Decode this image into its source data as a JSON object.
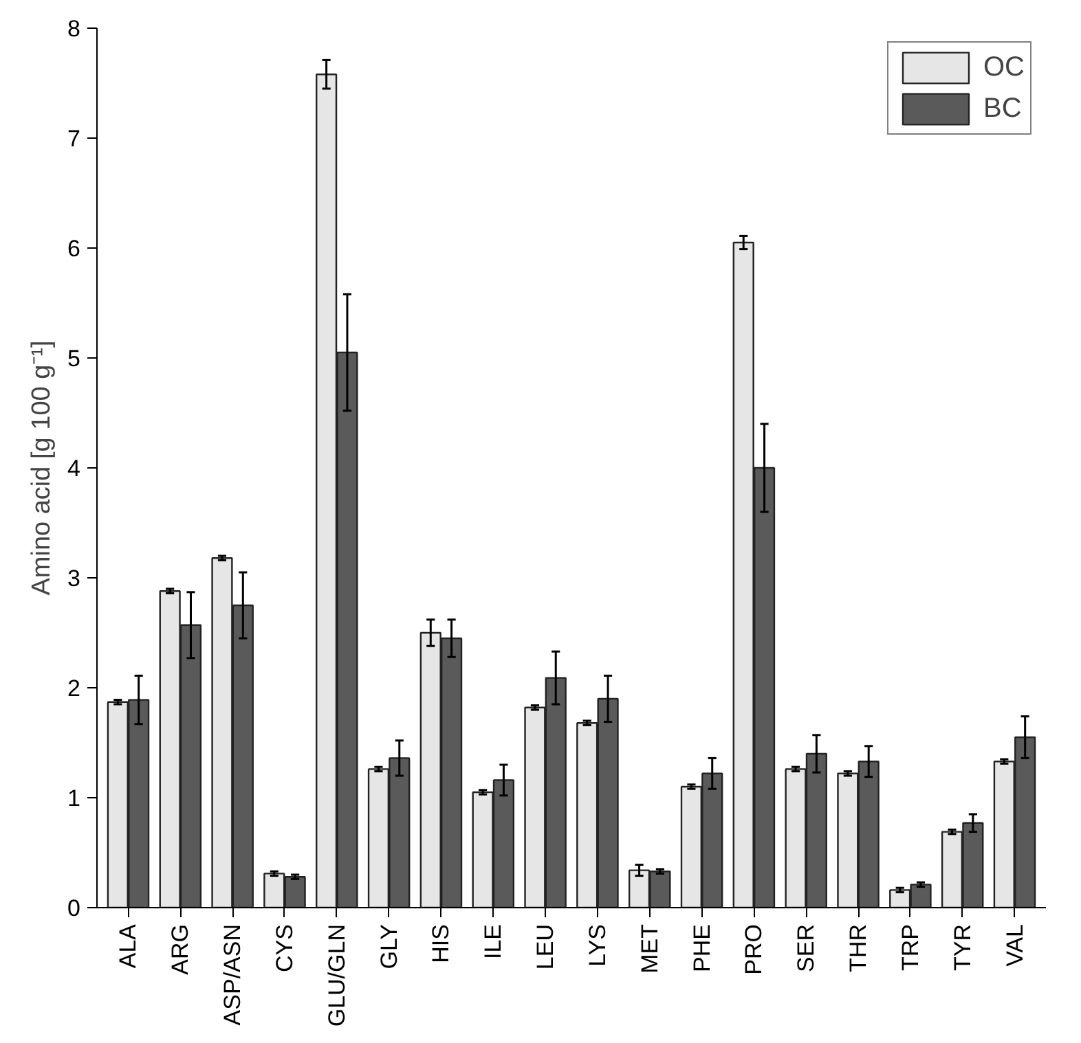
{
  "chart_data": {
    "type": "bar",
    "ylabel": "Amino acid [g 100 g⁻¹]",
    "categories": [
      "ALA",
      "ARG",
      "ASP/ASN",
      "CYS",
      "GLU/GLN",
      "GLY",
      "HIS",
      "ILE",
      "LEU",
      "LYS",
      "MET",
      "PHE",
      "PRO",
      "SER",
      "THR",
      "TRP",
      "TYR",
      "VAL"
    ],
    "series": [
      {
        "name": "OC",
        "color": "#e6e6e6",
        "values": [
          1.87,
          2.88,
          3.18,
          0.31,
          7.58,
          1.26,
          2.5,
          1.05,
          1.82,
          1.68,
          0.34,
          1.1,
          6.05,
          1.26,
          1.22,
          0.16,
          0.69,
          1.33
        ],
        "errors": [
          0.02,
          0.02,
          0.02,
          0.02,
          0.13,
          0.02,
          0.12,
          0.02,
          0.02,
          0.02,
          0.05,
          0.02,
          0.06,
          0.02,
          0.02,
          0.02,
          0.02,
          0.02
        ]
      },
      {
        "name": "BC",
        "color": "#5a5a5a",
        "values": [
          1.89,
          2.57,
          2.75,
          0.28,
          5.05,
          1.36,
          2.45,
          1.16,
          2.09,
          1.9,
          0.33,
          1.22,
          4.0,
          1.4,
          1.33,
          0.21,
          0.77,
          1.55
        ],
        "errors": [
          0.22,
          0.3,
          0.3,
          0.02,
          0.53,
          0.16,
          0.17,
          0.14,
          0.24,
          0.21,
          0.02,
          0.14,
          0.4,
          0.17,
          0.14,
          0.02,
          0.08,
          0.19
        ]
      }
    ],
    "ylim": [
      0,
      8
    ],
    "yticks": [
      0,
      1,
      2,
      3,
      4,
      5,
      6,
      7,
      8
    ],
    "grid": false,
    "legend": "top right"
  }
}
